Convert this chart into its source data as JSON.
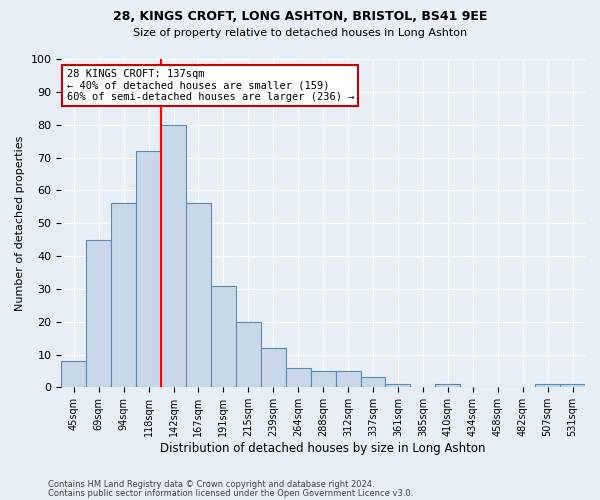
{
  "title1": "28, KINGS CROFT, LONG ASHTON, BRISTOL, BS41 9EE",
  "title2": "Size of property relative to detached houses in Long Ashton",
  "xlabel": "Distribution of detached houses by size in Long Ashton",
  "ylabel": "Number of detached properties",
  "footer1": "Contains HM Land Registry data © Crown copyright and database right 2024.",
  "footer2": "Contains public sector information licensed under the Open Government Licence v3.0.",
  "categories": [
    "45sqm",
    "69sqm",
    "94sqm",
    "118sqm",
    "142sqm",
    "167sqm",
    "191sqm",
    "215sqm",
    "239sqm",
    "264sqm",
    "288sqm",
    "312sqm",
    "337sqm",
    "361sqm",
    "385sqm",
    "410sqm",
    "434sqm",
    "458sqm",
    "482sqm",
    "507sqm",
    "531sqm"
  ],
  "values": [
    8,
    45,
    56,
    72,
    80,
    56,
    31,
    20,
    12,
    6,
    5,
    5,
    3,
    1,
    0,
    1,
    0,
    0,
    0,
    1,
    1
  ],
  "bar_color": "#c8d8e8",
  "bar_edge_color": "#5a8ab0",
  "red_line_index": 4,
  "annotation_title": "28 KINGS CROFT: 137sqm",
  "annotation_line1": "← 40% of detached houses are smaller (159)",
  "annotation_line2": "60% of semi-detached houses are larger (236) →",
  "annotation_box_color": "#ffffff",
  "annotation_box_edge": "#cc0000",
  "ylim": [
    0,
    100
  ],
  "background_color": "#e8eef5",
  "grid_color": "#ffffff"
}
